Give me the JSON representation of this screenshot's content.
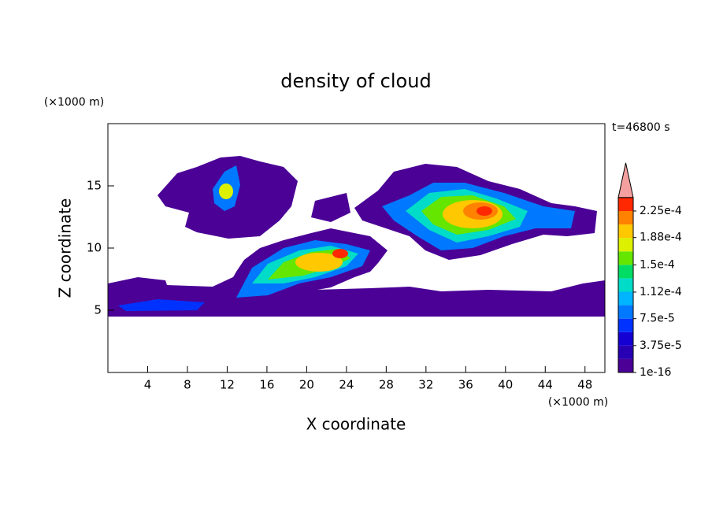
{
  "chart_data": {
    "type": "contour",
    "title": "density of cloud",
    "x_label": "X coordinate",
    "y_label": "Z coordinate",
    "x_unit": "(×1000 m)",
    "y_unit": "(×1000 m)",
    "annotation": "t=46800 s",
    "xlim": [
      0,
      50
    ],
    "ylim": [
      0,
      20
    ],
    "xticks": [
      4,
      8,
      12,
      16,
      20,
      24,
      28,
      32,
      36,
      40,
      44,
      48
    ],
    "yticks": [
      5,
      10,
      15
    ],
    "colorbar": {
      "ticks": [
        {
          "value": 1e-16,
          "label": "1e-16"
        },
        {
          "value": 3.75e-05,
          "label": "3.75e-5"
        },
        {
          "value": 7.5e-05,
          "label": "7.5e-5"
        },
        {
          "value": 0.000112,
          "label": "1.12e-4"
        },
        {
          "value": 0.00015,
          "label": "1.5e-4"
        },
        {
          "value": 0.000188,
          "label": "1.88e-4"
        },
        {
          "value": 0.000225,
          "label": "2.25e-4"
        }
      ],
      "colors": [
        "#4b0096",
        "#2800b4",
        "#1400d2",
        "#0032ff",
        "#0078ff",
        "#00b4ff",
        "#00dcc8",
        "#00dc64",
        "#64e600",
        "#dcf000",
        "#ffc800",
        "#ff8200",
        "#ff2800"
      ],
      "extend_color": "#f4a0a0"
    }
  }
}
